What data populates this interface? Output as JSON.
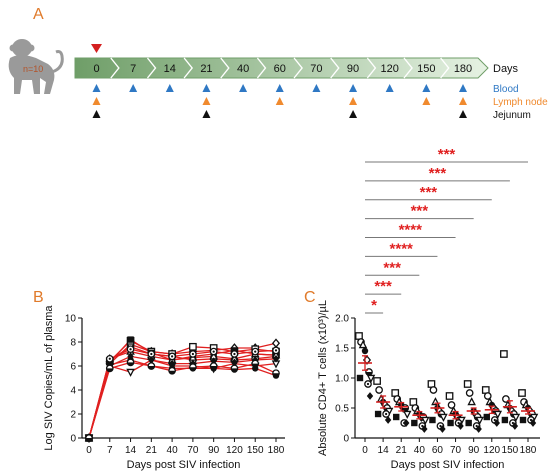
{
  "panel_a": {
    "letter": "A",
    "animal_count": "n=10",
    "days_label": "Days",
    "days": [
      "0",
      "7",
      "14",
      "21",
      "40",
      "60",
      "70",
      "90",
      "120",
      "150",
      "180"
    ],
    "legend": [
      {
        "label": "Blood",
        "color": "#2f78c4",
        "days": [
          "0",
          "7",
          "14",
          "21",
          "40",
          "60",
          "70",
          "90",
          "120",
          "150",
          "180"
        ]
      },
      {
        "label": "Lymph node",
        "color": "#f08a2e",
        "days": [
          "0",
          "21",
          "60",
          "90",
          "150",
          "180"
        ]
      },
      {
        "label": "Jejunum",
        "color": "#111111",
        "days": [
          "0",
          "21",
          "90",
          "180"
        ]
      }
    ],
    "infection_marker_color": "#d42020",
    "timeline_color_start": "#6f9e68",
    "timeline_color_end": "#e6f2e3"
  },
  "chart_data": [
    {
      "panel": "B",
      "type": "line",
      "ylabel": "Log SIV Copies/mL of plasma",
      "xlabel": "Days post SIV infection",
      "categories": [
        "0",
        "7",
        "14",
        "21",
        "40",
        "70",
        "90",
        "120",
        "150",
        "180"
      ],
      "ylim": [
        0,
        10
      ],
      "yticks": [
        "0",
        "2",
        "4",
        "6",
        "8",
        "10"
      ],
      "line_color": "#e02020",
      "series": [
        {
          "marker": "circle-open",
          "values": [
            0,
            6.5,
            7.6,
            7.0,
            6.8,
            6.5,
            6.6,
            6.5,
            6.6,
            6.8
          ]
        },
        {
          "marker": "triangle-down",
          "values": [
            0,
            6.0,
            5.5,
            6.5,
            6.0,
            6.0,
            5.8,
            6.2,
            6.0,
            6.2
          ]
        },
        {
          "marker": "diamond-open",
          "values": [
            0,
            6.2,
            7.8,
            7.2,
            7.0,
            7.2,
            7.3,
            7.5,
            7.5,
            7.9
          ]
        },
        {
          "marker": "square-open",
          "values": [
            0,
            6.4,
            8.1,
            7.2,
            7.0,
            7.6,
            7.5,
            7.2,
            7.4,
            7.2
          ]
        },
        {
          "marker": "square-filled",
          "values": [
            0,
            6.3,
            8.2,
            7.1,
            6.5,
            6.8,
            7.0,
            7.3,
            7.0,
            6.9
          ]
        },
        {
          "marker": "circle-filled",
          "values": [
            0,
            6.1,
            6.5,
            6.0,
            5.8,
            5.8,
            5.8,
            5.7,
            5.8,
            5.2
          ]
        },
        {
          "marker": "triangle-up",
          "values": [
            0,
            6.6,
            7.2,
            6.8,
            6.5,
            6.7,
            6.8,
            6.6,
            7.0,
            6.9
          ]
        },
        {
          "marker": "circle-dot",
          "values": [
            0,
            6.6,
            7.4,
            7.0,
            6.8,
            7.0,
            7.2,
            7.0,
            7.2,
            7.3
          ]
        },
        {
          "marker": "diamond-filled",
          "values": [
            0,
            6.0,
            6.8,
            6.5,
            6.2,
            6.2,
            6.4,
            6.3,
            6.5,
            6.6
          ]
        },
        {
          "marker": "circle-half",
          "values": [
            0,
            5.8,
            6.3,
            6.0,
            5.6,
            5.9,
            6.0,
            5.8,
            6.2,
            5.4
          ]
        }
      ]
    },
    {
      "panel": "C",
      "type": "scatter",
      "ylabel": "Absolute CD4+ T cells (x10³)/µL",
      "xlabel": "Days post SIV infection",
      "categories": [
        "0",
        "14",
        "21",
        "40",
        "60",
        "70",
        "90",
        "120",
        "150",
        "180"
      ],
      "ylim": [
        0,
        2.0
      ],
      "yticks": [
        "0",
        "0.5",
        "1.0",
        "1.5",
        "2.0"
      ],
      "mean_color": "#d42020",
      "means": [
        1.25,
        0.6,
        0.52,
        0.38,
        0.5,
        0.38,
        0.45,
        0.47,
        0.52,
        0.45
      ],
      "errors": [
        0.12,
        0.1,
        0.07,
        0.06,
        0.08,
        0.06,
        0.05,
        0.06,
        0.1,
        0.05
      ],
      "points": [
        [
          1.7,
          1.6,
          1.55,
          1.45,
          1.3,
          1.1,
          1.0,
          1.0,
          0.9,
          0.7
        ],
        [
          0.95,
          0.8,
          0.65,
          0.6,
          0.55,
          0.5,
          0.45,
          0.4,
          0.4,
          0.3
        ],
        [
          0.75,
          0.65,
          0.6,
          0.55,
          0.5,
          0.5,
          0.4,
          0.35,
          0.25,
          0.25
        ],
        [
          0.6,
          0.5,
          0.45,
          0.4,
          0.35,
          0.35,
          0.3,
          0.25,
          0.2,
          0.15
        ],
        [
          0.9,
          0.8,
          0.6,
          0.5,
          0.45,
          0.4,
          0.35,
          0.3,
          0.2,
          0.15
        ],
        [
          0.7,
          0.55,
          0.45,
          0.4,
          0.35,
          0.3,
          0.3,
          0.25,
          0.25,
          0.2
        ],
        [
          0.9,
          0.75,
          0.6,
          0.45,
          0.4,
          0.35,
          0.3,
          0.25,
          0.2,
          0.15
        ],
        [
          0.8,
          0.7,
          0.6,
          0.55,
          0.5,
          0.45,
          0.4,
          0.35,
          0.3,
          0.25
        ],
        [
          1.4,
          0.65,
          0.55,
          0.5,
          0.45,
          0.4,
          0.35,
          0.3,
          0.25,
          0.2
        ],
        [
          0.75,
          0.6,
          0.55,
          0.5,
          0.45,
          0.4,
          0.35,
          0.3,
          0.3,
          0.25
        ]
      ],
      "comparisons": [
        {
          "label": "*",
          "to": "14"
        },
        {
          "label": "***",
          "to": "21"
        },
        {
          "label": "***",
          "to": "40"
        },
        {
          "label": "****",
          "to": "60"
        },
        {
          "label": "****",
          "to": "70"
        },
        {
          "label": "***",
          "to": "90"
        },
        {
          "label": "***",
          "to": "120"
        },
        {
          "label": "***",
          "to": "150"
        },
        {
          "label": "***",
          "to": "180"
        }
      ]
    }
  ],
  "panel_b_letter": "B",
  "panel_c_letter": "C"
}
